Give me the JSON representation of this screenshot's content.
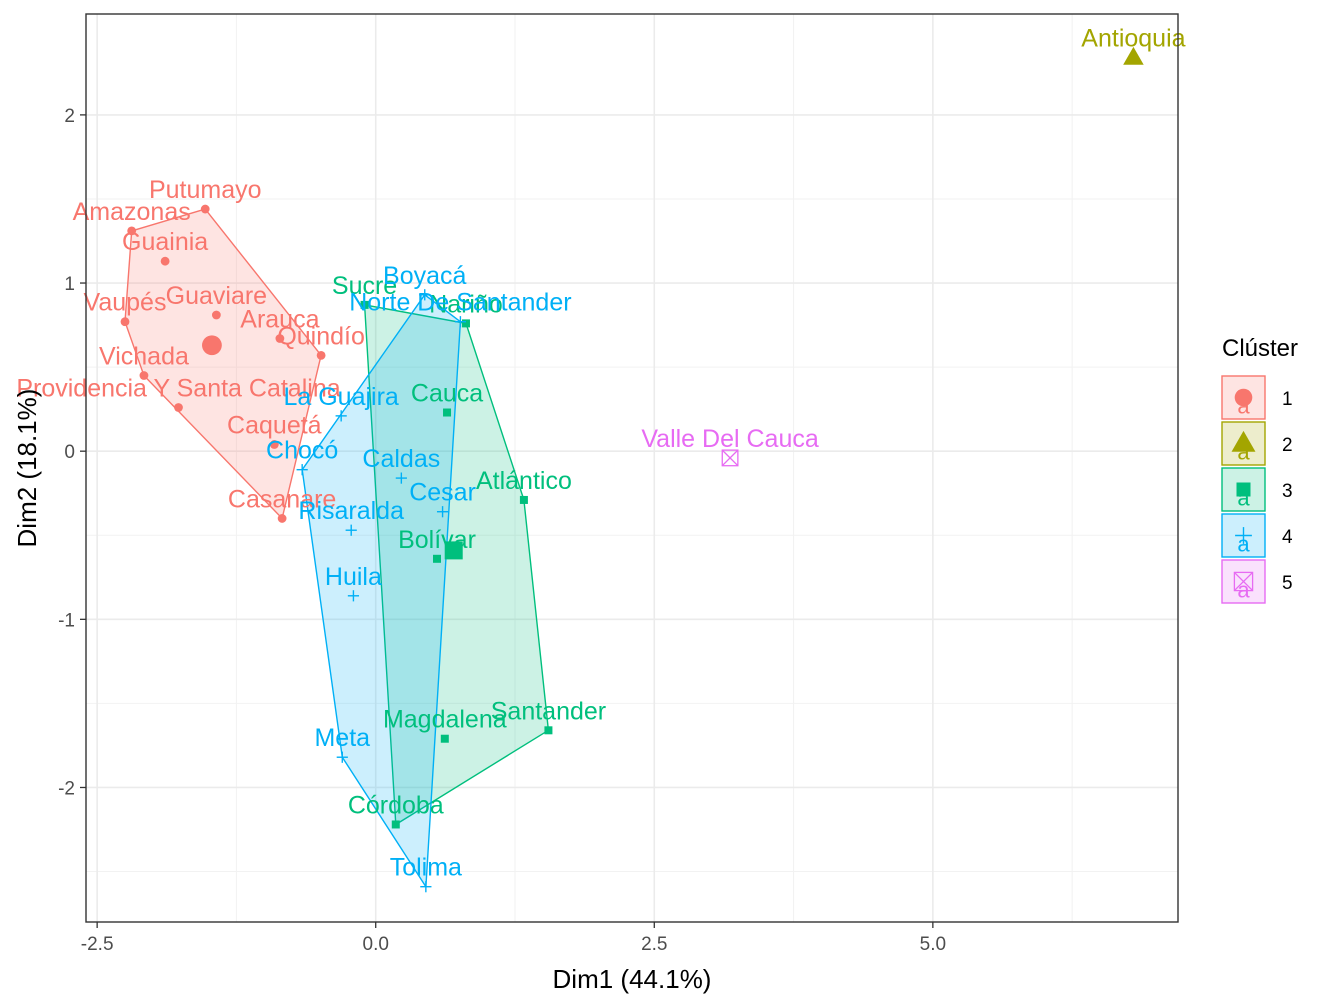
{
  "chart_data": {
    "type": "scatter",
    "title": "",
    "xlabel": "Dim1 (44.1%)",
    "ylabel": "Dim2 (18.1%)",
    "xlim": [
      -2.6,
      7.2
    ],
    "ylim": [
      -2.8,
      2.6
    ],
    "x_ticks": [
      -2.5,
      0.0,
      2.5,
      5.0
    ],
    "x_tick_labels": [
      "-2.5",
      "0.0",
      "2.5",
      "5.0"
    ],
    "y_ticks": [
      -2,
      -1,
      0,
      1,
      2
    ],
    "y_tick_labels": [
      "-2",
      "-1",
      "0",
      "1",
      "2"
    ],
    "grid": true,
    "theme": "bw",
    "legend": {
      "title": "Clúster",
      "position": "right",
      "key_glyph": "a",
      "entries": [
        {
          "label": "1",
          "color": "#F8766D",
          "shape": "circle"
        },
        {
          "label": "2",
          "color": "#A3A500",
          "shape": "triangle"
        },
        {
          "label": "3",
          "color": "#00BF7D",
          "shape": "square"
        },
        {
          "label": "4",
          "color": "#00B0F6",
          "shape": "plus"
        },
        {
          "label": "5",
          "color": "#E76BF3",
          "shape": "square-cross"
        }
      ]
    },
    "series": [
      {
        "name": "1",
        "color": "#F8766D",
        "shape": "circle",
        "hull": true,
        "centroid": [
          -1.47,
          0.63
        ],
        "points": [
          {
            "label": "Putumayo",
            "x": -1.53,
            "y": 1.44
          },
          {
            "label": "Amazonas",
            "x": -2.19,
            "y": 1.31
          },
          {
            "label": "Guainia",
            "x": -1.89,
            "y": 1.13
          },
          {
            "label": "Vaupés",
            "x": -2.25,
            "y": 0.77
          },
          {
            "label": "Guaviare",
            "x": -1.43,
            "y": 0.81
          },
          {
            "label": "Arauca",
            "x": -0.86,
            "y": 0.67
          },
          {
            "label": "Quindío",
            "x": -0.49,
            "y": 0.57
          },
          {
            "label": "Vichada",
            "x": -2.08,
            "y": 0.45
          },
          {
            "label": "Providencia Y Santa Catalina",
            "x": -1.77,
            "y": 0.26
          },
          {
            "label": "Caquetá",
            "x": -0.91,
            "y": 0.04
          },
          {
            "label": "Casanare",
            "x": -0.84,
            "y": -0.4
          }
        ]
      },
      {
        "name": "2",
        "color": "#A3A500",
        "shape": "triangle",
        "hull": false,
        "points": [
          {
            "label": "Antioquia",
            "x": 6.8,
            "y": 2.34
          }
        ]
      },
      {
        "name": "3",
        "color": "#00BF7D",
        "shape": "square",
        "hull": true,
        "centroid": [
          0.7,
          -0.59
        ],
        "points": [
          {
            "label": "Sucre",
            "x": -0.1,
            "y": 0.87
          },
          {
            "label": "Nariño",
            "x": 0.81,
            "y": 0.76
          },
          {
            "label": "Cauca",
            "x": 0.64,
            "y": 0.23
          },
          {
            "label": "Atlántico",
            "x": 1.33,
            "y": -0.29
          },
          {
            "label": "Bolívar",
            "x": 0.55,
            "y": -0.64
          },
          {
            "label": "Santander",
            "x": 1.55,
            "y": -1.66
          },
          {
            "label": "Magdalena",
            "x": 0.62,
            "y": -1.71
          },
          {
            "label": "Córdoba",
            "x": 0.18,
            "y": -2.22
          }
        ]
      },
      {
        "name": "4",
        "color": "#00B0F6",
        "shape": "plus",
        "hull": true,
        "points": [
          {
            "label": "Boyacá",
            "x": 0.44,
            "y": 0.93
          },
          {
            "label": "Norte De Santander",
            "x": 0.76,
            "y": 0.77
          },
          {
            "label": "La Guajira",
            "x": -0.31,
            "y": 0.21
          },
          {
            "label": "Chocó",
            "x": -0.66,
            "y": -0.11
          },
          {
            "label": "Caldas",
            "x": 0.23,
            "y": -0.16
          },
          {
            "label": "Cesar",
            "x": 0.6,
            "y": -0.36
          },
          {
            "label": "Risaralda",
            "x": -0.22,
            "y": -0.47
          },
          {
            "label": "Huila",
            "x": -0.2,
            "y": -0.86
          },
          {
            "label": "Meta",
            "x": -0.3,
            "y": -1.82
          },
          {
            "label": "Tolima",
            "x": 0.45,
            "y": -2.59
          }
        ]
      },
      {
        "name": "5",
        "color": "#E76BF3",
        "shape": "square-cross",
        "hull": false,
        "points": [
          {
            "label": "Valle Del Cauca",
            "x": 3.18,
            "y": -0.04
          }
        ]
      }
    ]
  }
}
